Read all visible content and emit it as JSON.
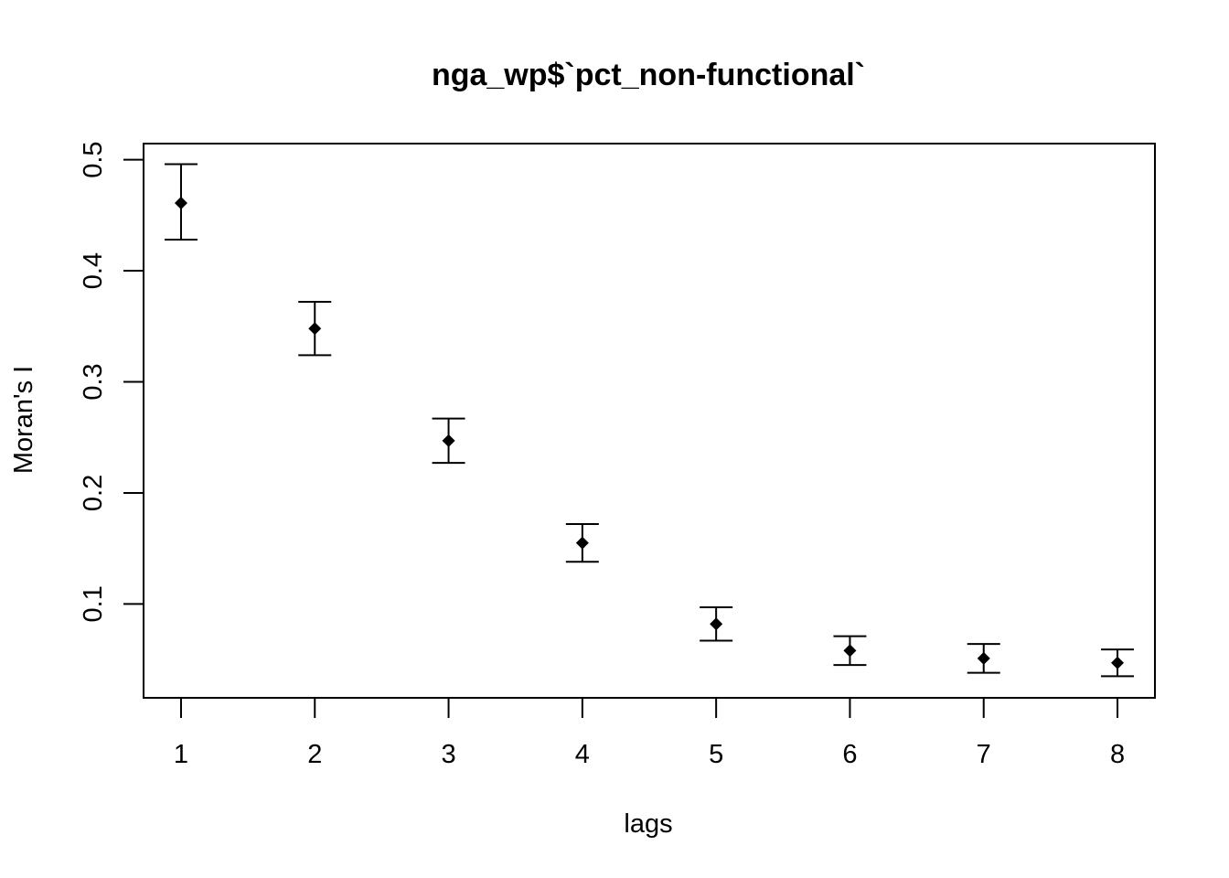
{
  "chart_data": {
    "type": "scatter",
    "title": "nga_wp$`pct_non-functional`",
    "xlabel": "lags",
    "ylabel": "Moran's  I",
    "x": [
      1,
      2,
      3,
      4,
      5,
      6,
      7,
      8
    ],
    "y": [
      0.461,
      0.348,
      0.247,
      0.155,
      0.082,
      0.058,
      0.051,
      0.047
    ],
    "y_lower": [
      0.428,
      0.324,
      0.227,
      0.138,
      0.067,
      0.045,
      0.038,
      0.035
    ],
    "y_upper": [
      0.496,
      0.372,
      0.267,
      0.172,
      0.097,
      0.071,
      0.064,
      0.059
    ],
    "x_ticks": [
      1,
      2,
      3,
      4,
      5,
      6,
      7,
      8
    ],
    "x_tick_labels": [
      "1",
      "2",
      "3",
      "4",
      "5",
      "6",
      "7",
      "8"
    ],
    "y_ticks": [
      0.1,
      0.2,
      0.3,
      0.4,
      0.5
    ],
    "y_tick_labels": [
      "0.1",
      "0.2",
      "0.3",
      "0.4",
      "0.5"
    ],
    "xlim": [
      0.72,
      8.28
    ],
    "ylim": [
      0.0155,
      0.5145
    ],
    "marker": "diamond",
    "grid": false,
    "legend": "none",
    "colors": {
      "points": "#000000",
      "axes": "#000000",
      "background": "#ffffff"
    }
  }
}
